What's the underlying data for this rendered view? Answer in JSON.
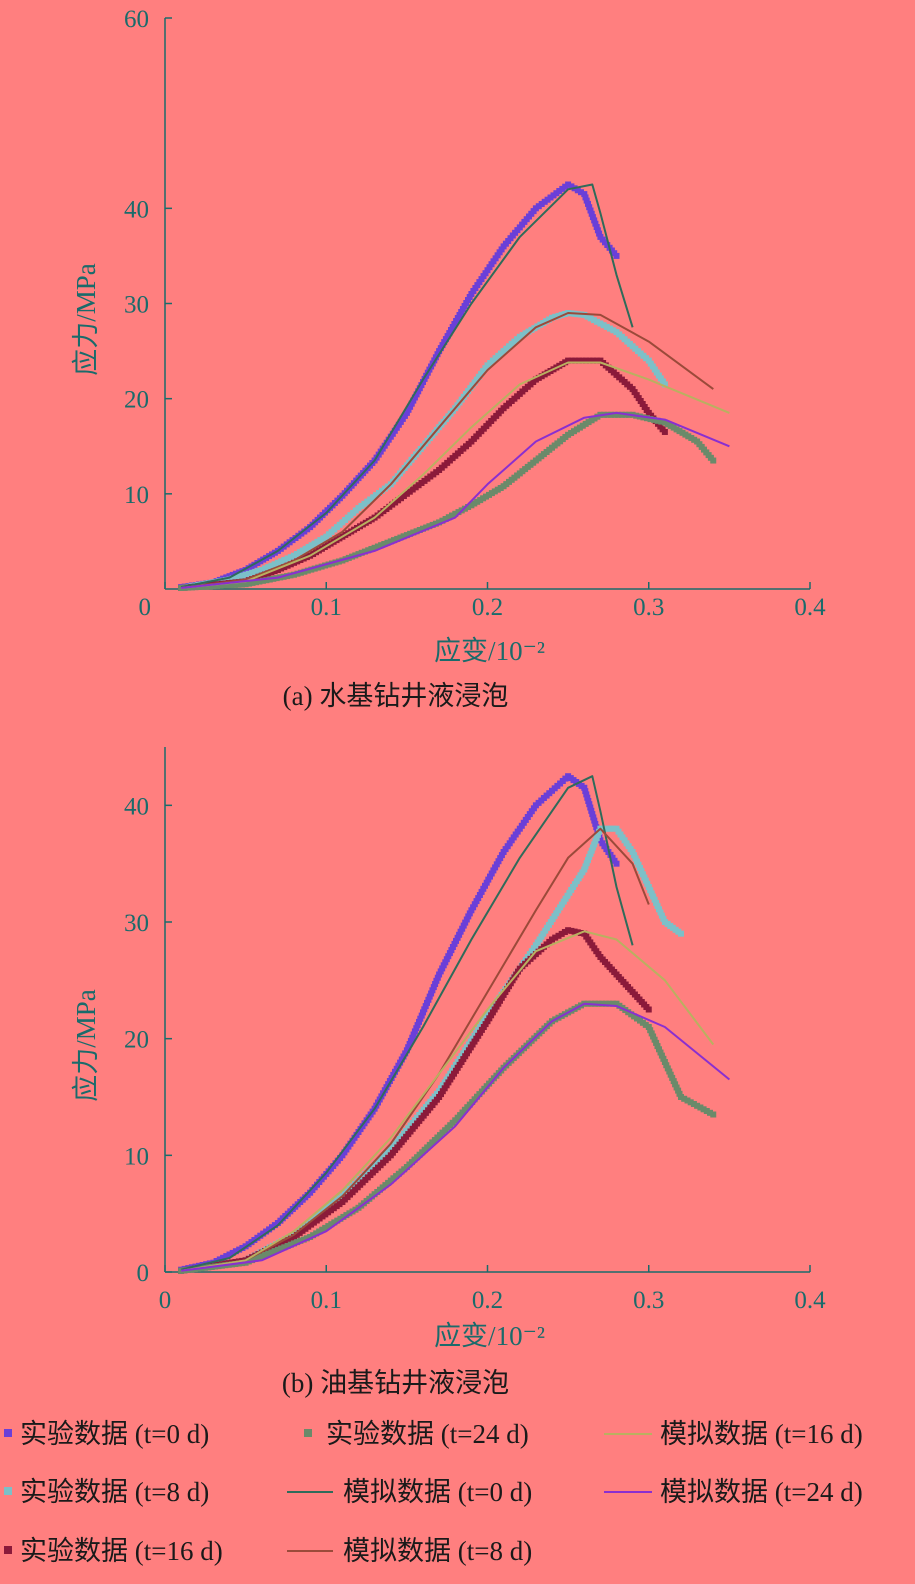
{
  "legend": {
    "exp_t0": "实验数据 (t=0 d)",
    "exp_t24": "实验数据 (t=24 d)",
    "sim_t16": "模拟数据 (t=16 d)",
    "exp_t8": "实验数据 (t=8 d)",
    "sim_t0": "模拟数据 (t=0 d)",
    "sim_t24": "模拟数据 (t=24 d)",
    "exp_t16": "实验数据 (t=16 d)",
    "sim_t8": "模拟数据 (t=8 d)"
  },
  "colors": {
    "background": "#FF7F7F",
    "axis": "#1a6b6b",
    "exp_t0": "#6a3fd8",
    "exp_t8": "#7cc0c8",
    "exp_t16": "#8b1a3a",
    "exp_t24": "#6a8a6a",
    "sim_t0": "#2f6b5a",
    "sim_t8": "#9b4a3a",
    "sim_t16": "#b9b060",
    "sim_t24": "#8a2fd0"
  },
  "chart_data": [
    {
      "type": "line",
      "caption": "(a) 水基钻井液浸泡",
      "xlabel": "应变/10⁻²",
      "ylabel": "应力/MPa",
      "xlim": [
        0,
        0.4
      ],
      "ylim": [
        0,
        60
      ],
      "xticks": [
        "0",
        "0.1",
        "0.2",
        "0.3",
        "0.4"
      ],
      "yticks": [
        "10",
        "20",
        "30",
        "40",
        "60"
      ],
      "series": [
        {
          "name": "实验数据 (t=0 d)",
          "kind": "marker",
          "key": "exp_t0",
          "x": [
            0.01,
            0.03,
            0.05,
            0.07,
            0.09,
            0.11,
            0.13,
            0.15,
            0.17,
            0.19,
            0.21,
            0.23,
            0.25,
            0.26,
            0.27,
            0.28
          ],
          "y": [
            0.2,
            0.7,
            2.0,
            4.0,
            6.5,
            9.8,
            13.5,
            18.5,
            25,
            31,
            36,
            40,
            42.5,
            41.5,
            37,
            35
          ]
        },
        {
          "name": "实验数据 (t=8 d)",
          "kind": "marker",
          "key": "exp_t8",
          "x": [
            0.01,
            0.04,
            0.06,
            0.08,
            0.1,
            0.12,
            0.14,
            0.16,
            0.18,
            0.2,
            0.22,
            0.24,
            0.25,
            0.26,
            0.28,
            0.3,
            0.31
          ],
          "y": [
            0.1,
            1.0,
            2.0,
            3.5,
            5.5,
            8.5,
            11,
            15,
            19,
            23.5,
            26.5,
            28.5,
            29,
            28.8,
            27,
            24,
            21.5
          ]
        },
        {
          "name": "实验数据 (t=16 d)",
          "kind": "marker",
          "key": "exp_t16",
          "x": [
            0.01,
            0.05,
            0.07,
            0.09,
            0.11,
            0.13,
            0.15,
            0.17,
            0.19,
            0.21,
            0.23,
            0.25,
            0.27,
            0.29,
            0.3,
            0.31
          ],
          "y": [
            0.1,
            0.8,
            2.0,
            3.5,
            5.5,
            7.5,
            10.0,
            12.5,
            15.5,
            19,
            22,
            24,
            24,
            21,
            18.5,
            16.5
          ]
        },
        {
          "name": "实验数据 (t=24 d)",
          "kind": "marker",
          "key": "exp_t24",
          "x": [
            0.01,
            0.05,
            0.08,
            0.11,
            0.14,
            0.17,
            0.19,
            0.21,
            0.23,
            0.25,
            0.27,
            0.29,
            0.31,
            0.33,
            0.34
          ],
          "y": [
            0.1,
            0.5,
            1.5,
            3.0,
            5.0,
            7.0,
            8.8,
            10.8,
            13.5,
            16.2,
            18.3,
            18.3,
            17.5,
            15.5,
            13.5
          ]
        },
        {
          "name": "模拟数据 (t=0 d)",
          "kind": "line",
          "key": "sim_t0",
          "x": [
            0.01,
            0.04,
            0.07,
            0.1,
            0.13,
            0.16,
            0.19,
            0.22,
            0.25,
            0.265,
            0.27,
            0.28,
            0.29
          ],
          "y": [
            0.2,
            1.2,
            4,
            8,
            13.5,
            22,
            30,
            37,
            42,
            42.5,
            39.5,
            33,
            27.5
          ]
        },
        {
          "name": "模拟数据 (t=8 d)",
          "kind": "line",
          "key": "sim_t8",
          "x": [
            0.01,
            0.05,
            0.08,
            0.11,
            0.14,
            0.17,
            0.2,
            0.23,
            0.25,
            0.27,
            0.3,
            0.34
          ],
          "y": [
            0.1,
            1.0,
            3.0,
            6.0,
            11,
            17,
            23,
            27.5,
            29,
            28.8,
            26,
            21
          ]
        },
        {
          "name": "模拟数据 (t=16 d)",
          "kind": "line",
          "key": "sim_t16",
          "x": [
            0.01,
            0.05,
            0.09,
            0.13,
            0.16,
            0.19,
            0.22,
            0.25,
            0.27,
            0.3,
            0.35
          ],
          "y": [
            0.1,
            0.8,
            3.5,
            7.5,
            12.0,
            17.0,
            21.5,
            23.8,
            23.8,
            22,
            18.5
          ]
        },
        {
          "name": "模拟数据 (t=24 d)",
          "kind": "line",
          "key": "sim_t24",
          "x": [
            0.01,
            0.07,
            0.13,
            0.18,
            0.2,
            0.23,
            0.26,
            0.28,
            0.31,
            0.35
          ],
          "y": [
            0.1,
            1.2,
            4.0,
            7.5,
            11.0,
            15.5,
            18.0,
            18.5,
            17.8,
            15.0
          ]
        }
      ]
    },
    {
      "type": "line",
      "caption": "(b) 油基钻井液浸泡",
      "xlabel": "应变/10⁻²",
      "ylabel": "应力/MPa",
      "xlim": [
        0,
        0.4
      ],
      "ylim": [
        0,
        45
      ],
      "xticks": [
        "0",
        "0.1",
        "0.2",
        "0.3",
        "0.4"
      ],
      "yticks": [
        "0",
        "10",
        "20",
        "30",
        "40"
      ],
      "series": [
        {
          "name": "实验数据 (t=0 d)",
          "kind": "marker",
          "key": "exp_t0",
          "x": [
            0.01,
            0.03,
            0.05,
            0.07,
            0.09,
            0.11,
            0.13,
            0.15,
            0.17,
            0.19,
            0.21,
            0.23,
            0.25,
            0.26,
            0.27,
            0.28
          ],
          "y": [
            0.2,
            0.8,
            2.2,
            4.2,
            6.8,
            10.0,
            14.0,
            19.0,
            25.5,
            31.0,
            36.0,
            40.0,
            42.5,
            41.5,
            37,
            35
          ]
        },
        {
          "name": "实验数据 (t=8 d)",
          "kind": "marker",
          "key": "exp_t8",
          "x": [
            0.01,
            0.05,
            0.08,
            0.11,
            0.14,
            0.17,
            0.2,
            0.23,
            0.26,
            0.27,
            0.28,
            0.29,
            0.3,
            0.31,
            0.32
          ],
          "y": [
            0.1,
            1.0,
            3.2,
            6.5,
            10.5,
            15.5,
            22,
            28,
            34.5,
            38,
            38,
            36,
            33,
            30,
            29
          ]
        },
        {
          "name": "实验数据 (t=16 d)",
          "kind": "marker",
          "key": "exp_t16",
          "x": [
            0.01,
            0.05,
            0.08,
            0.11,
            0.14,
            0.17,
            0.2,
            0.22,
            0.24,
            0.25,
            0.26,
            0.27,
            0.29,
            0.3
          ],
          "y": [
            0.1,
            1.0,
            3.0,
            6.0,
            10.0,
            15.0,
            21.5,
            26,
            28.5,
            29.3,
            29,
            27,
            24,
            22.5
          ]
        },
        {
          "name": "实验数据 (t=24 d)",
          "kind": "marker",
          "key": "exp_t24",
          "x": [
            0.01,
            0.05,
            0.09,
            0.12,
            0.15,
            0.18,
            0.21,
            0.24,
            0.26,
            0.28,
            0.3,
            0.31,
            0.32,
            0.34
          ],
          "y": [
            0.1,
            0.8,
            3.0,
            5.5,
            9.0,
            13.0,
            17.5,
            21.5,
            23,
            23,
            21,
            18,
            15,
            13.5
          ]
        },
        {
          "name": "模拟数据 (t=0 d)",
          "kind": "line",
          "key": "sim_t0",
          "x": [
            0.01,
            0.04,
            0.07,
            0.1,
            0.13,
            0.16,
            0.19,
            0.22,
            0.25,
            0.265,
            0.27,
            0.28,
            0.29
          ],
          "y": [
            0.2,
            1.2,
            4,
            8.5,
            14,
            21,
            28.5,
            35.5,
            41.5,
            42.5,
            39.5,
            33,
            28
          ]
        },
        {
          "name": "模拟数据 (t=8 d)",
          "kind": "line",
          "key": "sim_t8",
          "x": [
            0.01,
            0.05,
            0.08,
            0.11,
            0.14,
            0.17,
            0.2,
            0.23,
            0.25,
            0.27,
            0.29,
            0.3
          ],
          "y": [
            0.1,
            1.0,
            3.2,
            6.5,
            11,
            17,
            24,
            31,
            35.5,
            38,
            35,
            31.5
          ]
        },
        {
          "name": "模拟数据 (t=16 d)",
          "kind": "line",
          "key": "sim_t16",
          "x": [
            0.01,
            0.05,
            0.08,
            0.11,
            0.14,
            0.17,
            0.2,
            0.23,
            0.26,
            0.28,
            0.31,
            0.34
          ],
          "y": [
            0.1,
            1.0,
            3.5,
            7.0,
            11.5,
            17,
            22.5,
            27.5,
            29.2,
            28.5,
            25,
            19.5
          ]
        },
        {
          "name": "模拟数据 (t=24 d)",
          "kind": "line",
          "key": "sim_t24",
          "x": [
            0.01,
            0.06,
            0.1,
            0.14,
            0.18,
            0.21,
            0.24,
            0.26,
            0.28,
            0.31,
            0.35
          ],
          "y": [
            0.1,
            1.0,
            3.5,
            7.5,
            12.5,
            17.5,
            21.5,
            23,
            22.8,
            21,
            16.5
          ]
        }
      ]
    }
  ]
}
